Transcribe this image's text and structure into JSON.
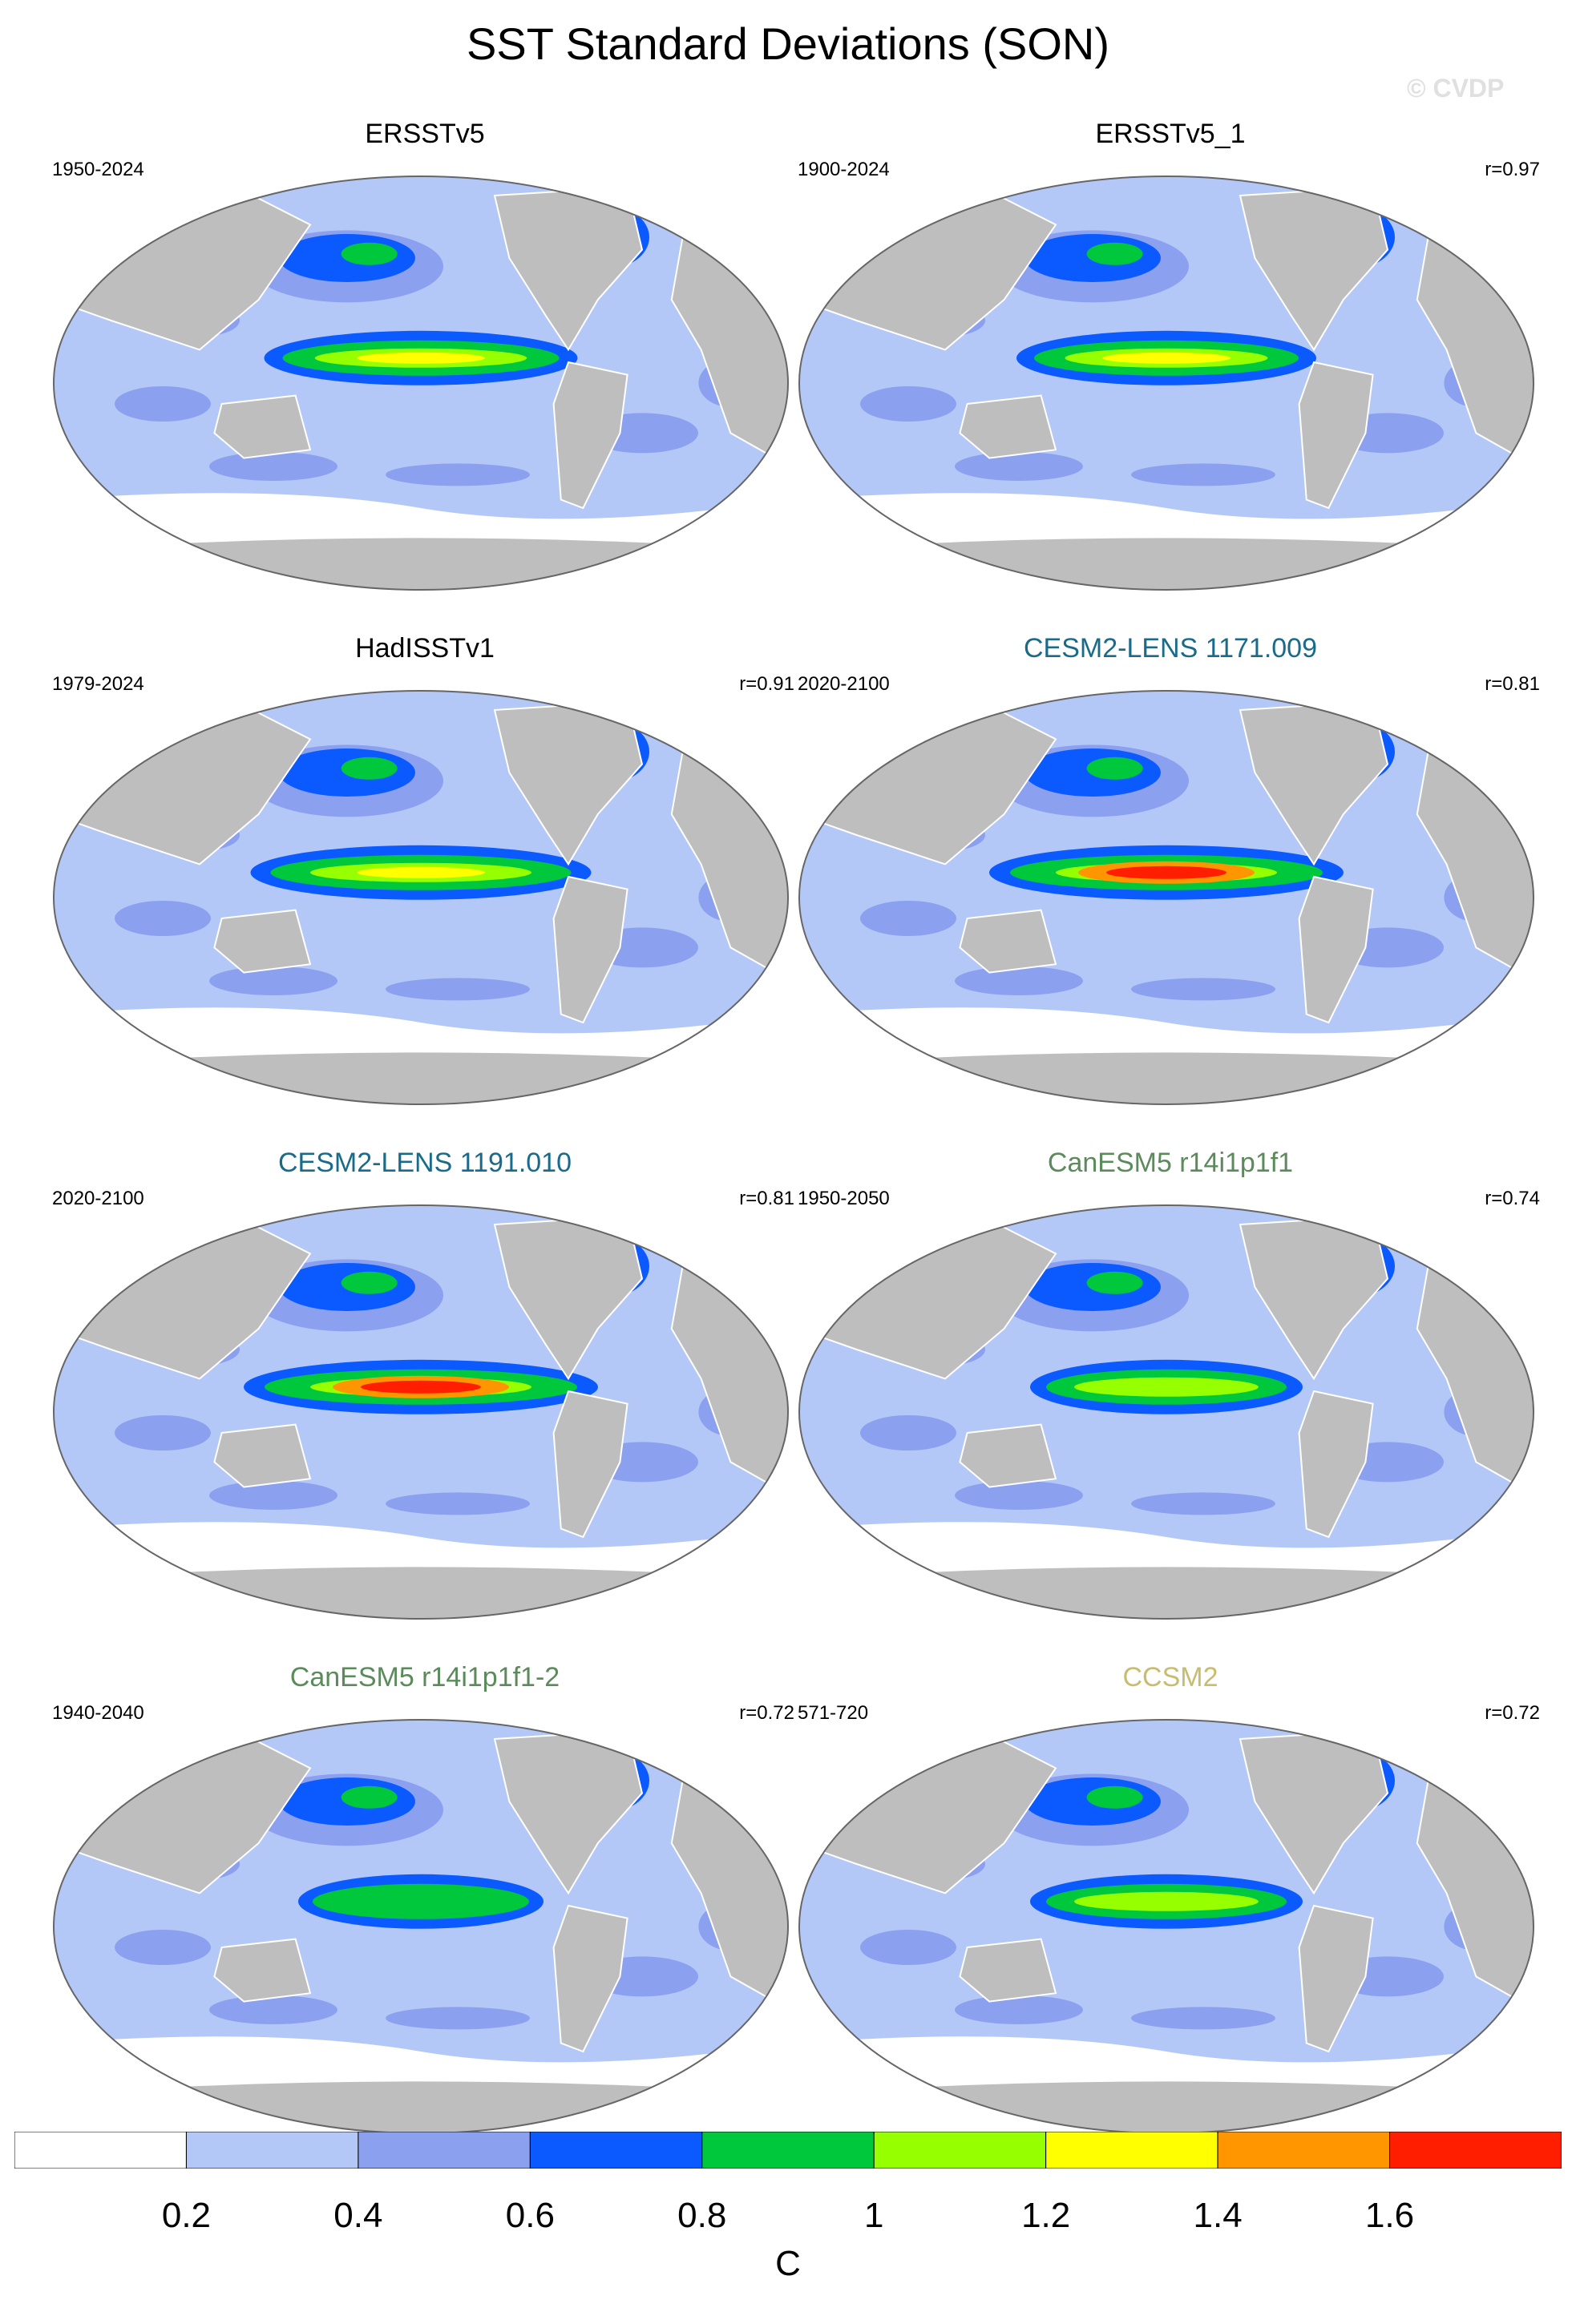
{
  "title": "SST Standard Deviations (SON)",
  "watermark": "© CVDP",
  "colors": {
    "land": "#bebebe",
    "ocean_base": "#b4c8f8",
    "levels": [
      "#ffffff",
      "#b4c8f8",
      "#8ca0f0",
      "#0a5aff",
      "#00c83c",
      "#96ff00",
      "#ffff00",
      "#ff9600",
      "#ff1e00"
    ]
  },
  "panels": [
    {
      "name": "ERSSTv5",
      "title_color": "#000000",
      "period": "1950-2024",
      "corr": "",
      "nino_strength": 1.15
    },
    {
      "name": "ERSSTv5_1",
      "title_color": "#000000",
      "period": "1900-2024",
      "corr": "r=0.97",
      "nino_strength": 1.1
    },
    {
      "name": "HadISSTv1",
      "title_color": "#000000",
      "period": "1979-2024",
      "corr": "r=0.91",
      "nino_strength": 1.25
    },
    {
      "name": "CESM2-LENS 1171.009",
      "title_color": "#1a6b8a",
      "period": "2020-2100",
      "corr": "r=0.81",
      "nino_strength": 1.7
    },
    {
      "name": "CESM2-LENS 1191.010",
      "title_color": "#1a6b8a",
      "period": "2020-2100",
      "corr": "r=0.81",
      "nino_strength": 1.8
    },
    {
      "name": "CanESM5 r14i1p1f1",
      "title_color": "#5b8a5b",
      "period": "1950-2050",
      "corr": "r=0.74",
      "nino_strength": 1.0
    },
    {
      "name": "CanESM5 r14i1p1f1-2",
      "title_color": "#5b8a5b",
      "period": "1940-2040",
      "corr": "r=0.72",
      "nino_strength": 0.9
    },
    {
      "name": "CCSM2",
      "title_color": "#c8bd6e",
      "period": "571-720",
      "corr": "r=0.72",
      "nino_strength": 1.0
    }
  ],
  "colorbar": {
    "ticks": [
      "0.2",
      "0.4",
      "0.6",
      "0.8",
      "1",
      "1.2",
      "1.4",
      "1.6"
    ],
    "units": "C"
  }
}
